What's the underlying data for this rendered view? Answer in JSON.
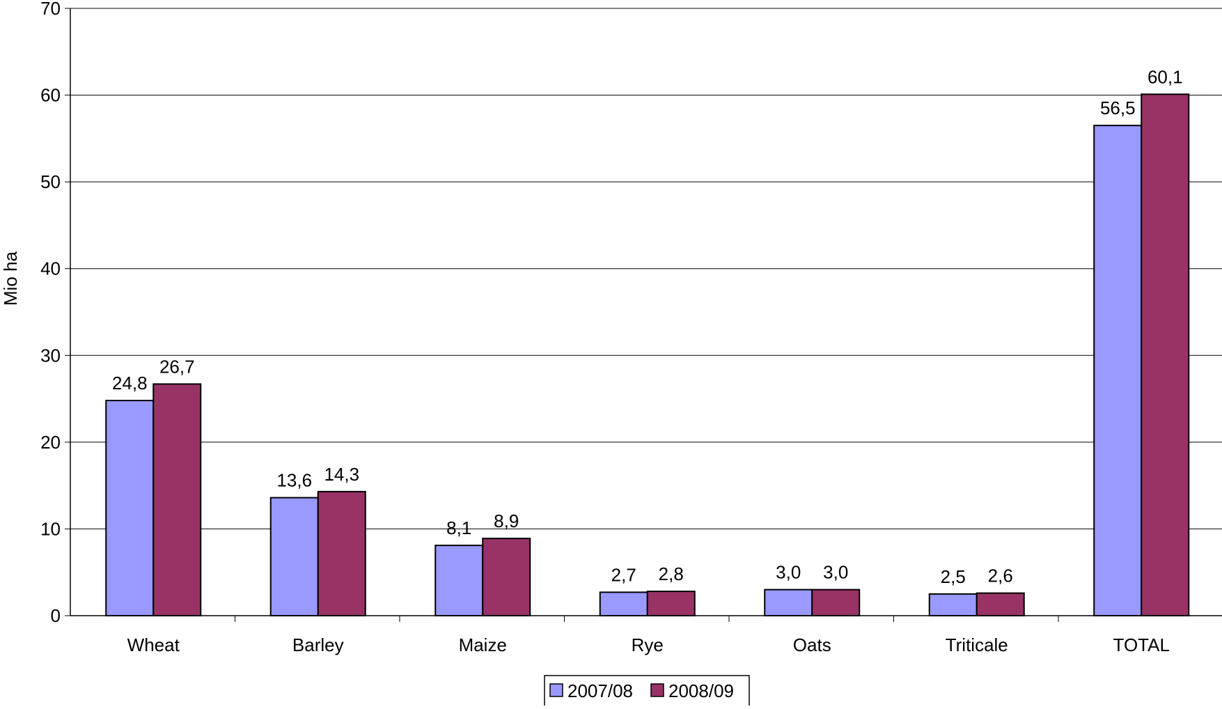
{
  "chart_data": {
    "type": "bar",
    "title": "",
    "xlabel": "",
    "ylabel": "Mio ha",
    "ylim": [
      0,
      70
    ],
    "yticks": [
      0,
      10,
      20,
      30,
      40,
      50,
      60,
      70
    ],
    "grid": true,
    "legend_position": "bottom",
    "categories": [
      "Wheat",
      "Barley",
      "Maize",
      "Rye",
      "Oats",
      "Triticale",
      "TOTAL"
    ],
    "series": [
      {
        "name": "2007/08",
        "color": "#9999ff",
        "values": [
          24.8,
          13.6,
          8.1,
          2.7,
          3.0,
          2.5,
          56.5
        ],
        "labels": [
          "24,8",
          "13,6",
          "8,1",
          "2,7",
          "3,0",
          "2,5",
          "56,5"
        ]
      },
      {
        "name": "2008/09",
        "color": "#993366",
        "values": [
          26.7,
          14.3,
          8.9,
          2.8,
          3.0,
          2.6,
          60.1
        ],
        "labels": [
          "26,7",
          "14,3",
          "8,9",
          "2,8",
          "3,0",
          "2,6",
          "60,1"
        ]
      }
    ]
  }
}
